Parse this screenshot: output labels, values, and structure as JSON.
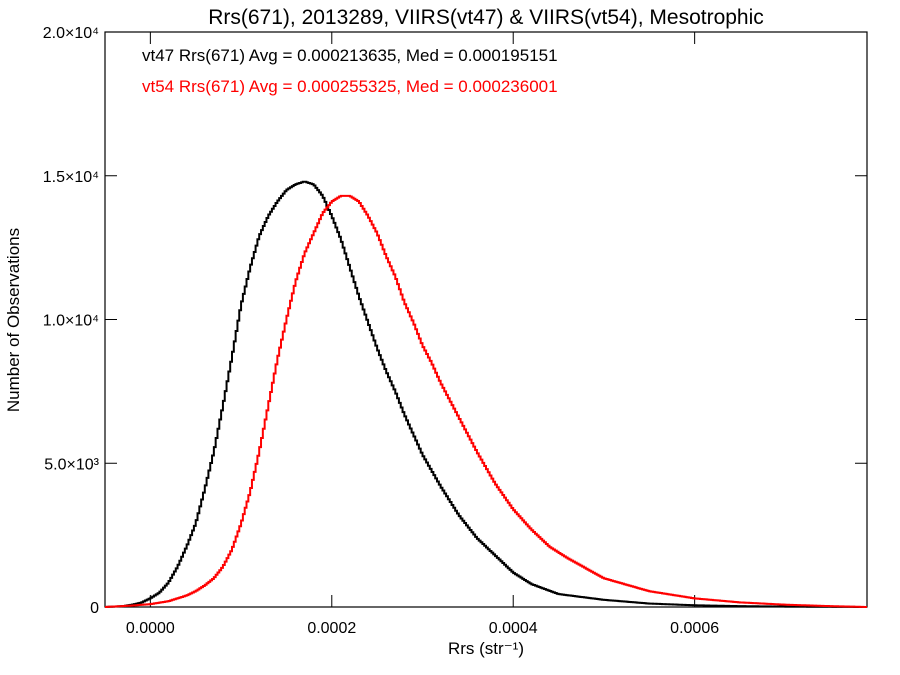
{
  "chart_data": {
    "type": "line",
    "title": "Rrs(671), 2013289, VIIRS(vt47) & VIIRS(vt54), Mesotrophic",
    "xlabel": "Rrs (str⁻¹)",
    "ylabel": "Number of Observations",
    "xlim": [
      -5e-05,
      0.00079
    ],
    "ylim": [
      0,
      20000
    ],
    "x_ticks": [
      {
        "value": 0.0,
        "label": "0.0000"
      },
      {
        "value": 0.0002,
        "label": "0.0002"
      },
      {
        "value": 0.0004,
        "label": "0.0004"
      },
      {
        "value": 0.0006,
        "label": "0.0006"
      }
    ],
    "y_ticks": [
      {
        "value": 0,
        "label": "0"
      },
      {
        "value": 5000,
        "label": "5.0×10³"
      },
      {
        "value": 10000,
        "label": "1.0×10⁴"
      },
      {
        "value": 15000,
        "label": "1.5×10⁴"
      },
      {
        "value": 20000,
        "label": "2.0×10⁴"
      }
    ],
    "grid": false,
    "legend_position": "top-left",
    "series": [
      {
        "name": "vt47",
        "color": "#000000",
        "annotation": "vt47 Rrs(671) Avg = 0.000213635, Med = 0.000195151",
        "x": [
          -5e-05,
          -3e-05,
          -2e-05,
          -1e-05,
          0,
          1e-05,
          2e-05,
          3e-05,
          4e-05,
          5e-05,
          6e-05,
          7e-05,
          8e-05,
          9e-05,
          0.0001,
          0.00011,
          0.00012,
          0.00013,
          0.00014,
          0.00015,
          0.00016,
          0.00017,
          0.00018,
          0.00019,
          0.0002,
          0.00021,
          0.00022,
          0.00023,
          0.00024,
          0.00025,
          0.00026,
          0.00027,
          0.00028,
          0.00029,
          0.0003,
          0.00032,
          0.00034,
          0.00036,
          0.00038,
          0.0004,
          0.00042,
          0.00045,
          0.0005,
          0.00055,
          0.0006,
          0.00065,
          0.0007,
          0.00079
        ],
        "y": [
          0,
          30,
          80,
          150,
          300,
          500,
          850,
          1400,
          2100,
          2900,
          4100,
          5400,
          7000,
          8700,
          10500,
          11800,
          12900,
          13600,
          14100,
          14500,
          14700,
          14800,
          14700,
          14300,
          13600,
          12800,
          11800,
          10800,
          9900,
          9000,
          8200,
          7500,
          6700,
          6000,
          5300,
          4200,
          3200,
          2400,
          1800,
          1200,
          800,
          450,
          250,
          120,
          60,
          30,
          15,
          0
        ]
      },
      {
        "name": "vt54",
        "color": "#ff0000",
        "annotation": "vt54 Rrs(671) Avg = 0.000255325, Med = 0.000236001",
        "x": [
          -5e-05,
          -2e-05,
          0,
          2e-05,
          4e-05,
          5e-05,
          6e-05,
          7e-05,
          8e-05,
          9e-05,
          0.0001,
          0.00011,
          0.00012,
          0.00013,
          0.00014,
          0.00015,
          0.00016,
          0.00017,
          0.00018,
          0.00019,
          0.0002,
          0.00021,
          0.00022,
          0.00023,
          0.00024,
          0.00025,
          0.00026,
          0.00027,
          0.00028,
          0.00029,
          0.0003,
          0.00031,
          0.00032,
          0.00034,
          0.00036,
          0.00038,
          0.0004,
          0.00042,
          0.00044,
          0.00046,
          0.00048,
          0.0005,
          0.00055,
          0.0006,
          0.00065,
          0.0007,
          0.00075,
          0.00079
        ],
        "y": [
          0,
          50,
          100,
          200,
          400,
          550,
          750,
          1000,
          1400,
          2000,
          2900,
          4000,
          5400,
          7000,
          8600,
          10000,
          11300,
          12300,
          13000,
          13700,
          14100,
          14300,
          14300,
          14100,
          13600,
          13000,
          12200,
          11500,
          10600,
          9900,
          9100,
          8500,
          7800,
          6600,
          5400,
          4300,
          3400,
          2700,
          2100,
          1700,
          1350,
          1000,
          550,
          300,
          160,
          80,
          30,
          0
        ]
      }
    ]
  }
}
